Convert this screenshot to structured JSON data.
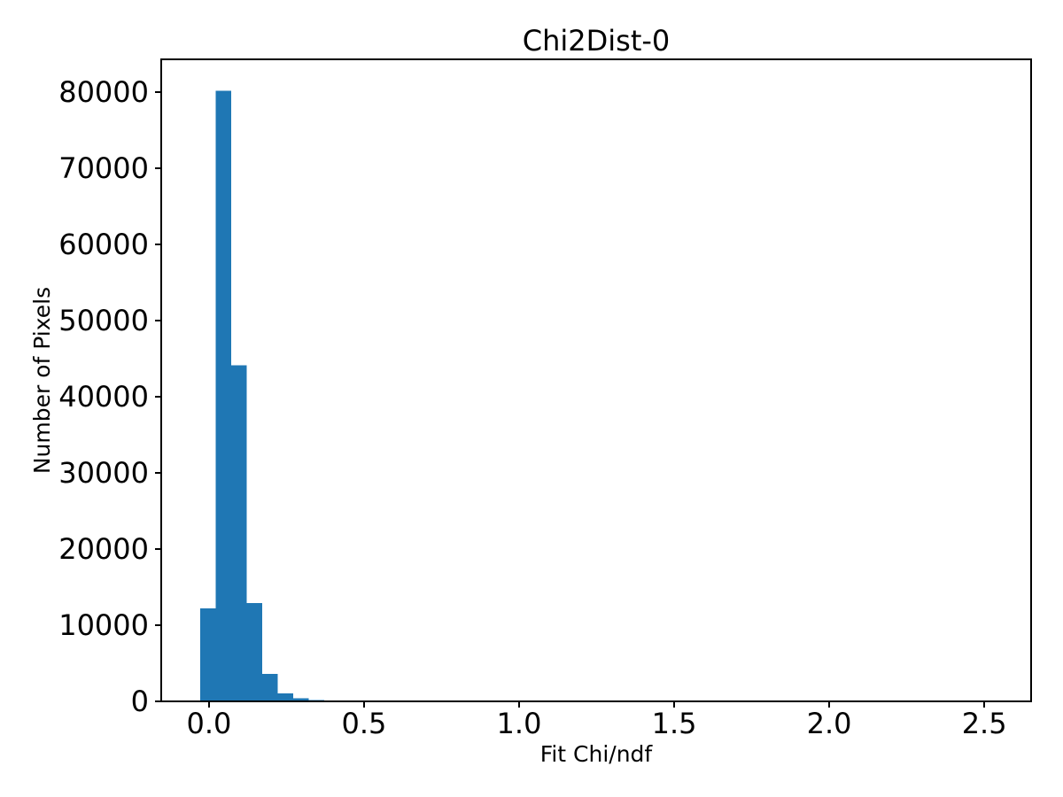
{
  "chart_data": {
    "type": "bar",
    "subtype": "histogram",
    "title": "Chi2Dist-0",
    "xlabel": "Fit Chi/ndf",
    "ylabel": "Number of Pixels",
    "bar_color": "#1f77b4",
    "background_color": "#ffffff",
    "axis_color": "#000000",
    "bin_start": -0.029,
    "bin_width": 0.05,
    "counts": [
      12200,
      80200,
      44100,
      12900,
      3600,
      1050,
      400,
      200
    ],
    "xlim": [
      -0.154,
      2.651
    ],
    "ylim": [
      0,
      84300
    ],
    "xticks": [
      0,
      0.5,
      1.0,
      1.5,
      2.0,
      2.5
    ],
    "xtick_labels": [
      "0.0",
      "0.5",
      "1.0",
      "1.5",
      "2.0",
      "2.5"
    ],
    "yticks": [
      0,
      10000,
      20000,
      30000,
      40000,
      50000,
      60000,
      70000,
      80000
    ],
    "ytick_labels": [
      "0",
      "10000",
      "20000",
      "30000",
      "40000",
      "50000",
      "60000",
      "70000",
      "80000"
    ],
    "grid": false,
    "legend_position": "none"
  }
}
